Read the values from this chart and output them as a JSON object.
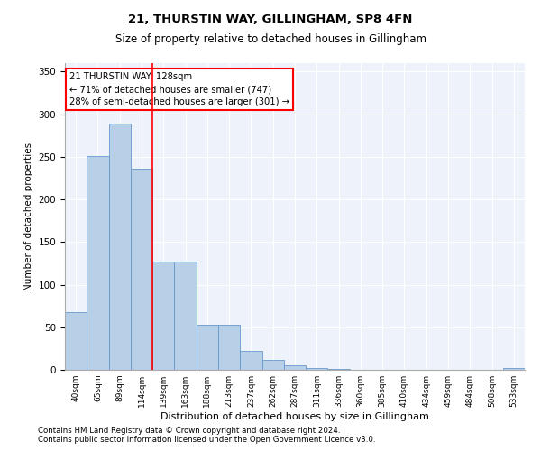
{
  "title1": "21, THURSTIN WAY, GILLINGHAM, SP8 4FN",
  "title2": "Size of property relative to detached houses in Gillingham",
  "xlabel": "Distribution of detached houses by size in Gillingham",
  "ylabel": "Number of detached properties",
  "bar_color": "#b8cfe8",
  "bar_edge_color": "#6699cc",
  "bg_color": "#eef2fb",
  "grid_color": "#ffffff",
  "tick_labels": [
    "40sqm",
    "65sqm",
    "89sqm",
    "114sqm",
    "139sqm",
    "163sqm",
    "188sqm",
    "213sqm",
    "237sqm",
    "262sqm",
    "287sqm",
    "311sqm",
    "336sqm",
    "360sqm",
    "385sqm",
    "410sqm",
    "434sqm",
    "459sqm",
    "484sqm",
    "508sqm",
    "533sqm"
  ],
  "bar_values": [
    68,
    251,
    289,
    236,
    127,
    127,
    53,
    53,
    22,
    12,
    5,
    2,
    1,
    0,
    0,
    0,
    0,
    0,
    0,
    0,
    2
  ],
  "annotation_text": "21 THURSTIN WAY: 128sqm\n← 71% of detached houses are smaller (747)\n28% of semi-detached houses are larger (301) →",
  "red_line_x": 3.5,
  "ylim": [
    0,
    360
  ],
  "yticks": [
    0,
    50,
    100,
    150,
    200,
    250,
    300,
    350
  ],
  "footnote1": "Contains HM Land Registry data © Crown copyright and database right 2024.",
  "footnote2": "Contains public sector information licensed under the Open Government Licence v3.0."
}
